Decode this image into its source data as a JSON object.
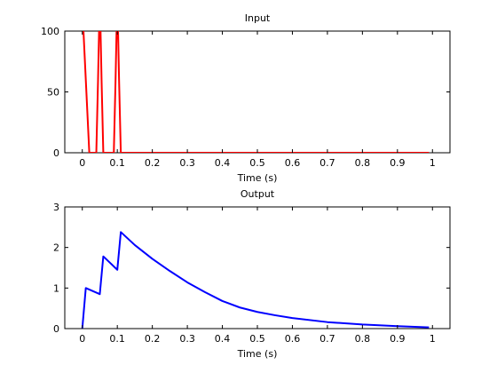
{
  "chart_data": [
    {
      "type": "line",
      "title": "Input",
      "xlabel": "Time (s)",
      "ylabel": "",
      "xlim": [
        -0.05,
        1.05
      ],
      "ylim": [
        0,
        100
      ],
      "xticks": [
        0,
        0.1,
        0.2,
        0.3,
        0.4,
        0.5,
        0.6,
        0.7,
        0.8,
        0.9,
        1
      ],
      "xtick_labels": [
        "0",
        "0.1",
        "0.2",
        "0.3",
        "0.4",
        "0.5",
        "0.6",
        "0.7",
        "0.8",
        "0.9",
        "1"
      ],
      "yticks": [
        0,
        50,
        100
      ],
      "ytick_labels": [
        "0",
        "50",
        "100"
      ],
      "grid": false,
      "legend": "none",
      "series": [
        {
          "color": "#ff0000",
          "x": [
            0,
            0.01,
            0.02,
            0.03,
            0.04,
            0.045,
            0.05,
            0.055,
            0.06,
            0.065,
            0.07,
            0.08,
            0.09,
            0.095,
            0.1,
            0.105,
            0.11,
            0.12,
            0.99
          ],
          "y": [
            120,
            60,
            0,
            0,
            0,
            60,
            130,
            60,
            0,
            0,
            0,
            0,
            0,
            60,
            130,
            60,
            0,
            0,
            0
          ]
        }
      ]
    },
    {
      "type": "line",
      "title": "Output",
      "xlabel": "Time (s)",
      "ylabel": "",
      "xlim": [
        -0.05,
        1.05
      ],
      "ylim": [
        0,
        3
      ],
      "xticks": [
        0,
        0.1,
        0.2,
        0.3,
        0.4,
        0.5,
        0.6,
        0.7,
        0.8,
        0.9,
        1
      ],
      "xtick_labels": [
        "0",
        "0.1",
        "0.2",
        "0.3",
        "0.4",
        "0.5",
        "0.6",
        "0.7",
        "0.8",
        "0.9",
        "1"
      ],
      "yticks": [
        0,
        1,
        2,
        3
      ],
      "ytick_labels": [
        "0",
        "1",
        "2",
        "3"
      ],
      "grid": false,
      "legend": "none",
      "series": [
        {
          "color": "#0000ff",
          "x": [
            0,
            0.01,
            0.05,
            0.06,
            0.1,
            0.11,
            0.15,
            0.2,
            0.25,
            0.3,
            0.35,
            0.4,
            0.45,
            0.5,
            0.55,
            0.6,
            0.7,
            0.8,
            0.9,
            0.99
          ],
          "y": [
            0,
            1.0,
            0.85,
            1.78,
            1.45,
            2.38,
            2.06,
            1.72,
            1.42,
            1.14,
            0.9,
            0.68,
            0.52,
            0.41,
            0.33,
            0.26,
            0.16,
            0.1,
            0.06,
            0.03
          ]
        }
      ]
    }
  ]
}
